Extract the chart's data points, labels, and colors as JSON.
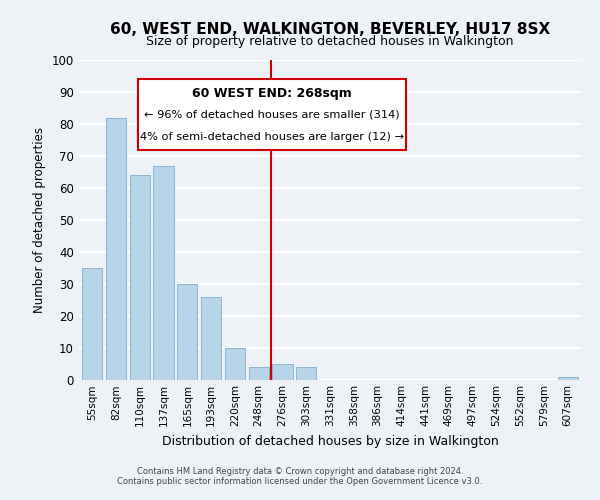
{
  "title": "60, WEST END, WALKINGTON, BEVERLEY, HU17 8SX",
  "subtitle": "Size of property relative to detached houses in Walkington",
  "xlabel": "Distribution of detached houses by size in Walkington",
  "ylabel": "Number of detached properties",
  "bin_labels": [
    "55sqm",
    "82sqm",
    "110sqm",
    "137sqm",
    "165sqm",
    "193sqm",
    "220sqm",
    "248sqm",
    "276sqm",
    "303sqm",
    "331sqm",
    "358sqm",
    "386sqm",
    "414sqm",
    "441sqm",
    "469sqm",
    "497sqm",
    "524sqm",
    "552sqm",
    "579sqm",
    "607sqm"
  ],
  "bar_heights": [
    35,
    82,
    64,
    67,
    30,
    26,
    10,
    4,
    5,
    4,
    0,
    0,
    0,
    0,
    0,
    0,
    0,
    0,
    0,
    0,
    1
  ],
  "bar_color": "#b8d4e8",
  "bar_edge_color": "#8ab4d0",
  "vline_color": "#cc0000",
  "ylim": [
    0,
    100
  ],
  "yticks": [
    0,
    10,
    20,
    30,
    40,
    50,
    60,
    70,
    80,
    90,
    100
  ],
  "annotation_title": "60 WEST END: 268sqm",
  "annotation_line1": "← 96% of detached houses are smaller (314)",
  "annotation_line2": "4% of semi-detached houses are larger (12) →",
  "annotation_box_color": "#ffffff",
  "annotation_box_edge": "#cc0000",
  "footer1": "Contains HM Land Registry data © Crown copyright and database right 2024.",
  "footer2": "Contains public sector information licensed under the Open Government Licence v3.0.",
  "background_color": "#eef2f7",
  "grid_color": "#ffffff",
  "title_fontsize": 11,
  "subtitle_fontsize": 9,
  "xlabel_fontsize": 9,
  "ylabel_fontsize": 8.5,
  "tick_fontsize": 7.5,
  "ytick_fontsize": 8.5,
  "footer_fontsize": 6.0
}
